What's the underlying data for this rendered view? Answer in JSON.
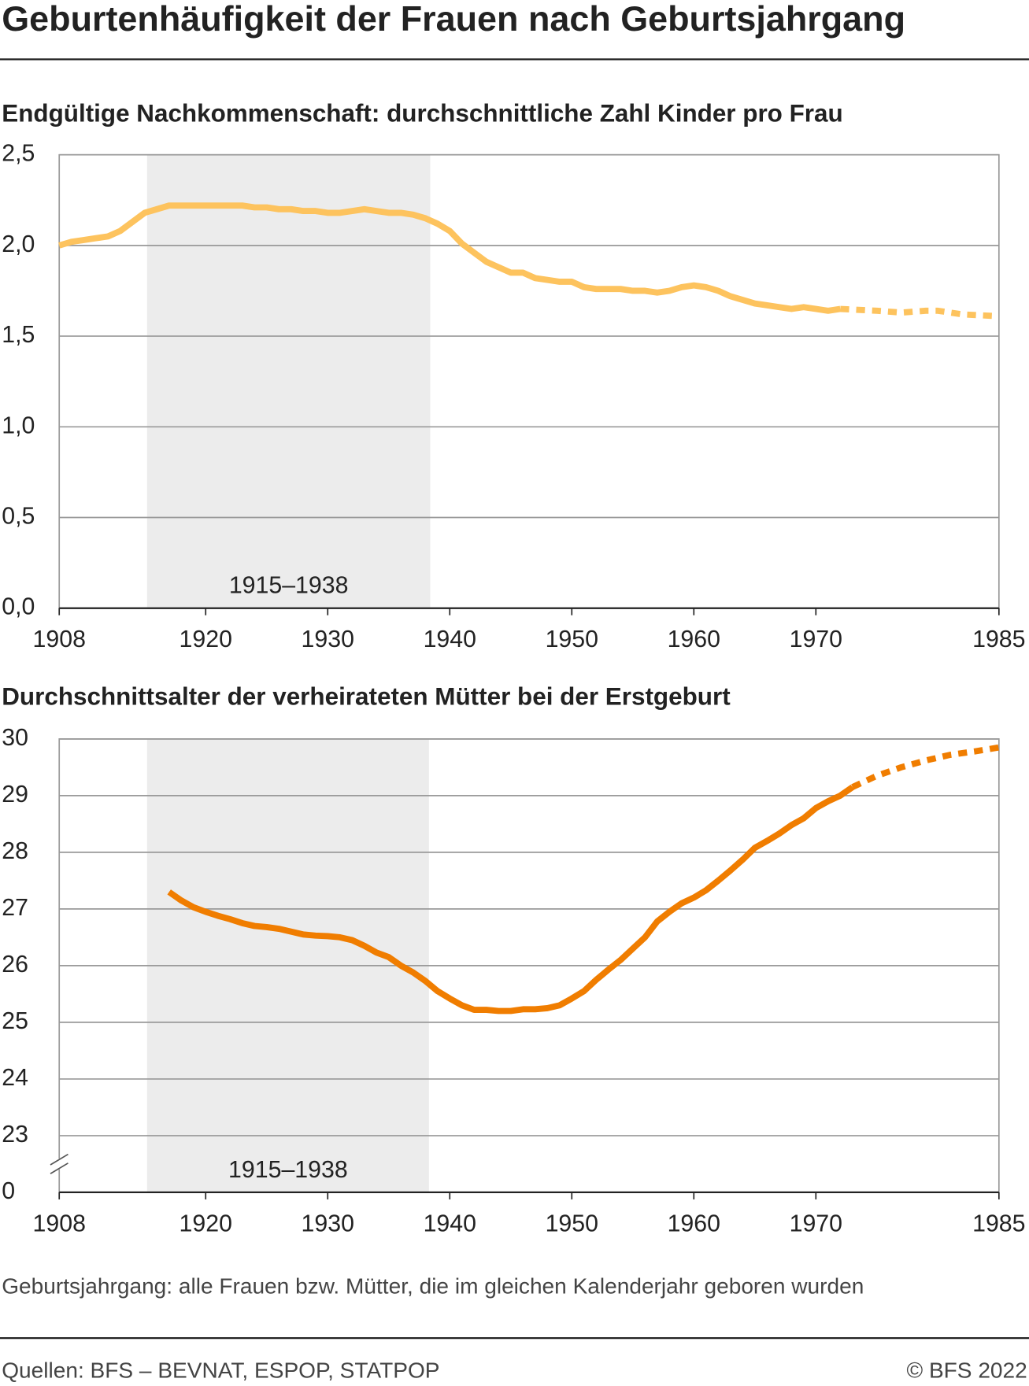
{
  "title": "Geburtenhäufigkeit der Frauen nach Geburtsjahrgang",
  "note": "Geburtsjahrgang: alle Frauen bzw. Mütter, die im gleichen Kalenderjahr geboren wurden",
  "source": "Quellen: BFS – BEVNAT, ESPOP, STATPOP",
  "copyright": "© BFS 2022",
  "chart_data": [
    {
      "type": "line",
      "title": "Endgültige Nachkommenschaft: durchschnittliche Zahl Kinder pro Frau",
      "xlim": [
        1908,
        1985
      ],
      "xticks": [
        1908,
        1920,
        1930,
        1940,
        1950,
        1960,
        1970,
        1985
      ],
      "ylim": [
        0,
        2.5
      ],
      "yticks": [
        {
          "value": 0,
          "label": "0,0"
        },
        {
          "value": 0.5,
          "label": "0,5"
        },
        {
          "value": 1,
          "label": "1,0"
        },
        {
          "value": 1.5,
          "label": "1,5"
        },
        {
          "value": 2,
          "label": "2,0"
        },
        {
          "value": 2.5,
          "label": "2,5"
        }
      ],
      "grid": true,
      "shade": [
        1915.2,
        1938.4
      ],
      "shade_label": "1915–1938",
      "series": [
        {
          "color": "#fdc35e",
          "dashed": false,
          "x": [
            1908,
            1909,
            1910,
            1911,
            1912,
            1913,
            1914,
            1915,
            1916,
            1917,
            1918,
            1919,
            1920,
            1921,
            1922,
            1923,
            1924,
            1925,
            1926,
            1927,
            1928,
            1929,
            1930,
            1931,
            1932,
            1933,
            1934,
            1935,
            1936,
            1937,
            1938,
            1939,
            1940,
            1941,
            1942,
            1943,
            1944,
            1945,
            1946,
            1947,
            1948,
            1949,
            1950,
            1951,
            1952,
            1953,
            1954,
            1955,
            1956,
            1957,
            1958,
            1959,
            1960,
            1961,
            1962,
            1963,
            1964,
            1965,
            1966,
            1967,
            1968,
            1969,
            1970,
            1971,
            1972
          ],
          "values": [
            2.0,
            2.02,
            2.03,
            2.04,
            2.05,
            2.08,
            2.13,
            2.18,
            2.2,
            2.22,
            2.22,
            2.22,
            2.22,
            2.22,
            2.22,
            2.22,
            2.21,
            2.21,
            2.2,
            2.2,
            2.19,
            2.19,
            2.18,
            2.18,
            2.19,
            2.2,
            2.19,
            2.18,
            2.18,
            2.17,
            2.15,
            2.12,
            2.08,
            2.01,
            1.96,
            1.91,
            1.88,
            1.85,
            1.85,
            1.82,
            1.81,
            1.8,
            1.8,
            1.77,
            1.76,
            1.76,
            1.76,
            1.75,
            1.75,
            1.74,
            1.75,
            1.77,
            1.78,
            1.77,
            1.75,
            1.72,
            1.7,
            1.68,
            1.67,
            1.66,
            1.65,
            1.66,
            1.65,
            1.64,
            1.65
          ]
        },
        {
          "color": "#fdc35e",
          "dashed": true,
          "x": [
            1972,
            1975,
            1977,
            1979,
            1980,
            1982,
            1985
          ],
          "values": [
            1.65,
            1.64,
            1.63,
            1.64,
            1.64,
            1.62,
            1.61
          ]
        }
      ]
    },
    {
      "type": "line",
      "title": "Durchschnittsalter der verheirateten Mütter bei der Erstgeburt",
      "xlim": [
        1908,
        1985
      ],
      "xticks": [
        1908,
        1920,
        1930,
        1940,
        1950,
        1960,
        1970,
        1985
      ],
      "ylim": [
        0,
        30
      ],
      "axis_break": [
        0,
        23
      ],
      "yticks": [
        0,
        23,
        24,
        25,
        26,
        27,
        28,
        29,
        30
      ],
      "grid": true,
      "shade": [
        1915.2,
        1938.3
      ],
      "shade_label": "1915–1938",
      "series": [
        {
          "color": "#f07d00",
          "dashed": false,
          "x": [
            1917,
            1918,
            1919,
            1920,
            1921,
            1922,
            1923,
            1924,
            1925,
            1926,
            1927,
            1928,
            1929,
            1930,
            1931,
            1932,
            1933,
            1934,
            1935,
            1936,
            1937,
            1938,
            1939,
            1940,
            1941,
            1942,
            1943,
            1944,
            1945,
            1946,
            1947,
            1948,
            1949,
            1950,
            1951,
            1952,
            1953,
            1954,
            1955,
            1956,
            1957,
            1958,
            1959,
            1960,
            1961,
            1962,
            1963,
            1964,
            1965,
            1966,
            1967,
            1968,
            1969,
            1970,
            1971,
            1972,
            1973
          ],
          "values": [
            27.3,
            27.15,
            27.03,
            26.95,
            26.88,
            26.82,
            26.75,
            26.7,
            26.68,
            26.65,
            26.6,
            26.55,
            26.53,
            26.52,
            26.5,
            26.45,
            26.35,
            26.23,
            26.15,
            26.0,
            25.88,
            25.73,
            25.55,
            25.42,
            25.3,
            25.22,
            25.22,
            25.2,
            25.2,
            25.23,
            25.23,
            25.25,
            25.3,
            25.42,
            25.55,
            25.75,
            25.93,
            26.1,
            26.3,
            26.5,
            26.78,
            26.95,
            27.1,
            27.2,
            27.33,
            27.5,
            27.68,
            27.87,
            28.08,
            28.2,
            28.33,
            28.48,
            28.6,
            28.78,
            28.9,
            29.0,
            29.15
          ]
        },
        {
          "color": "#f07d00",
          "dashed": true,
          "x": [
            1973,
            1975,
            1977,
            1979,
            1981,
            1983,
            1985
          ],
          "values": [
            29.15,
            29.35,
            29.5,
            29.62,
            29.72,
            29.78,
            29.85
          ]
        }
      ]
    }
  ]
}
